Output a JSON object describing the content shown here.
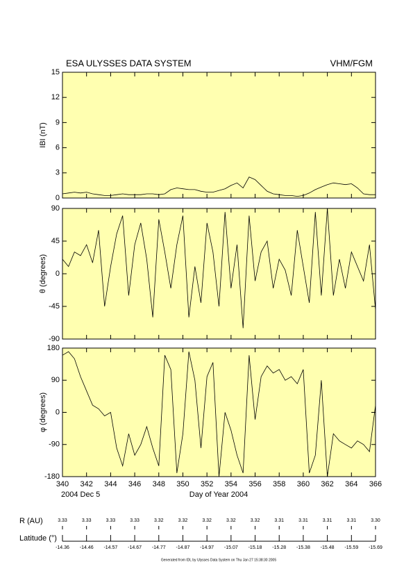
{
  "header": {
    "title": "ESA ULYSSES DATA SYSTEM",
    "instrument": "VHM/FGM"
  },
  "chart_data": [
    {
      "type": "line",
      "y_label": "IBI (nT)",
      "ylim": [
        0,
        15
      ],
      "yticks": [
        0,
        3,
        6,
        9,
        12,
        15
      ],
      "xlim": [
        340,
        366
      ],
      "color": "#000000",
      "background": "#ffffb0",
      "x": [
        340,
        340.5,
        341,
        341.5,
        342,
        342.5,
        343,
        343.5,
        344,
        344.5,
        345,
        345.5,
        346,
        346.5,
        347,
        347.5,
        348,
        348.5,
        349,
        349.5,
        350,
        350.5,
        351,
        351.5,
        352,
        352.5,
        353,
        353.5,
        354,
        354.5,
        355,
        355.5,
        356,
        356.5,
        357,
        357.5,
        358,
        358.5,
        359,
        359.5,
        360,
        360.5,
        361,
        361.5,
        362,
        362.5,
        363,
        363.5,
        364,
        364.5,
        365,
        365.5,
        366
      ],
      "values": [
        0.5,
        0.6,
        0.7,
        0.6,
        0.7,
        0.5,
        0.4,
        0.3,
        0.3,
        0.4,
        0.5,
        0.4,
        0.4,
        0.4,
        0.5,
        0.5,
        0.4,
        0.5,
        1.0,
        1.2,
        1.1,
        1.0,
        1.0,
        0.8,
        0.7,
        0.7,
        0.9,
        1.1,
        1.5,
        1.8,
        1.2,
        2.5,
        2.2,
        1.5,
        0.8,
        0.5,
        0.4,
        0.3,
        0.3,
        0.2,
        0.3,
        0.6,
        1.0,
        1.3,
        1.6,
        1.8,
        1.7,
        1.6,
        1.7,
        1.2,
        0.5,
        0.4,
        0.4
      ]
    },
    {
      "type": "line",
      "y_label": "θ (degrees)",
      "ylim": [
        -90,
        90
      ],
      "yticks": [
        -90,
        -45,
        0,
        45,
        90
      ],
      "xlim": [
        340,
        366
      ],
      "color": "#000000",
      "background": "#ffffb0",
      "x": [
        340,
        340.5,
        341,
        341.5,
        342,
        342.5,
        343,
        343.5,
        344,
        344.5,
        345,
        345.5,
        346,
        346.5,
        347,
        347.5,
        348,
        348.5,
        349,
        349.5,
        350,
        350.5,
        351,
        351.5,
        352,
        352.5,
        353,
        353.5,
        354,
        354.5,
        355,
        355.5,
        356,
        356.5,
        357,
        357.5,
        358,
        358.5,
        359,
        359.5,
        360,
        360.5,
        361,
        361.5,
        362,
        362.5,
        363,
        363.5,
        364,
        364.5,
        365,
        365.5,
        366
      ],
      "values": [
        20,
        10,
        30,
        25,
        40,
        15,
        60,
        -45,
        10,
        55,
        80,
        -30,
        40,
        70,
        20,
        -60,
        75,
        30,
        -20,
        40,
        80,
        -60,
        10,
        -40,
        70,
        30,
        -45,
        85,
        -20,
        40,
        -75,
        80,
        -10,
        30,
        45,
        -20,
        20,
        5,
        -30,
        60,
        10,
        -40,
        85,
        -30,
        90,
        -30,
        20,
        -20,
        30,
        10,
        -10,
        40,
        -50
      ]
    },
    {
      "type": "line",
      "y_label": "φ (degrees)",
      "ylim": [
        -180,
        180
      ],
      "yticks": [
        -180,
        -90,
        0,
        90,
        180
      ],
      "xlim": [
        340,
        366
      ],
      "xticks": [
        340,
        342,
        344,
        346,
        348,
        350,
        352,
        354,
        356,
        358,
        360,
        362,
        364,
        366
      ],
      "x_label": "Day of Year 2004",
      "start_date": "2004 Dec  5",
      "color": "#000000",
      "background": "#ffffb0",
      "x": [
        340,
        340.5,
        341,
        341.5,
        342,
        342.5,
        343,
        343.5,
        344,
        344.5,
        345,
        345.5,
        346,
        346.5,
        347,
        347.5,
        348,
        348.5,
        349,
        349.5,
        350,
        350.5,
        351,
        351.5,
        352,
        352.5,
        353,
        353.5,
        354,
        354.5,
        355,
        355.5,
        356,
        356.5,
        357,
        357.5,
        358,
        358.5,
        359,
        359.5,
        360,
        360.5,
        361,
        361.5,
        362,
        362.5,
        363,
        363.5,
        364,
        364.5,
        365,
        365.5,
        366
      ],
      "values": [
        160,
        170,
        150,
        100,
        60,
        20,
        10,
        -10,
        0,
        -100,
        -150,
        -60,
        -120,
        -90,
        -40,
        -100,
        -150,
        160,
        120,
        -170,
        -60,
        170,
        90,
        -100,
        100,
        140,
        -180,
        0,
        -50,
        -120,
        -170,
        160,
        -20,
        100,
        130,
        110,
        120,
        90,
        100,
        80,
        120,
        -170,
        -120,
        90,
        -180,
        -60,
        -80,
        -90,
        -100,
        -80,
        -90,
        -110,
        20
      ]
    }
  ],
  "orbit": {
    "r_label": "R (AU)",
    "r_values": [
      "3.33",
      "3.33",
      "3.33",
      "3.33",
      "3.32",
      "3.32",
      "3.32",
      "3.32",
      "3.32",
      "3.31",
      "3.31",
      "3.31",
      "3.31",
      "3.30"
    ],
    "latitude_label": "Latitude (°)",
    "latitude_values": [
      "-14.36",
      "-14.46",
      "-14.57",
      "-14.67",
      "-14.77",
      "-14.87",
      "-14.97",
      "-15.07",
      "-15.18",
      "-15.28",
      "-15.38",
      "-15.48",
      "-15.59",
      "-15.69"
    ]
  },
  "footer": "Generated from IDL by Ulysses Data System on Thu Jan 27 15:38:30 2005"
}
